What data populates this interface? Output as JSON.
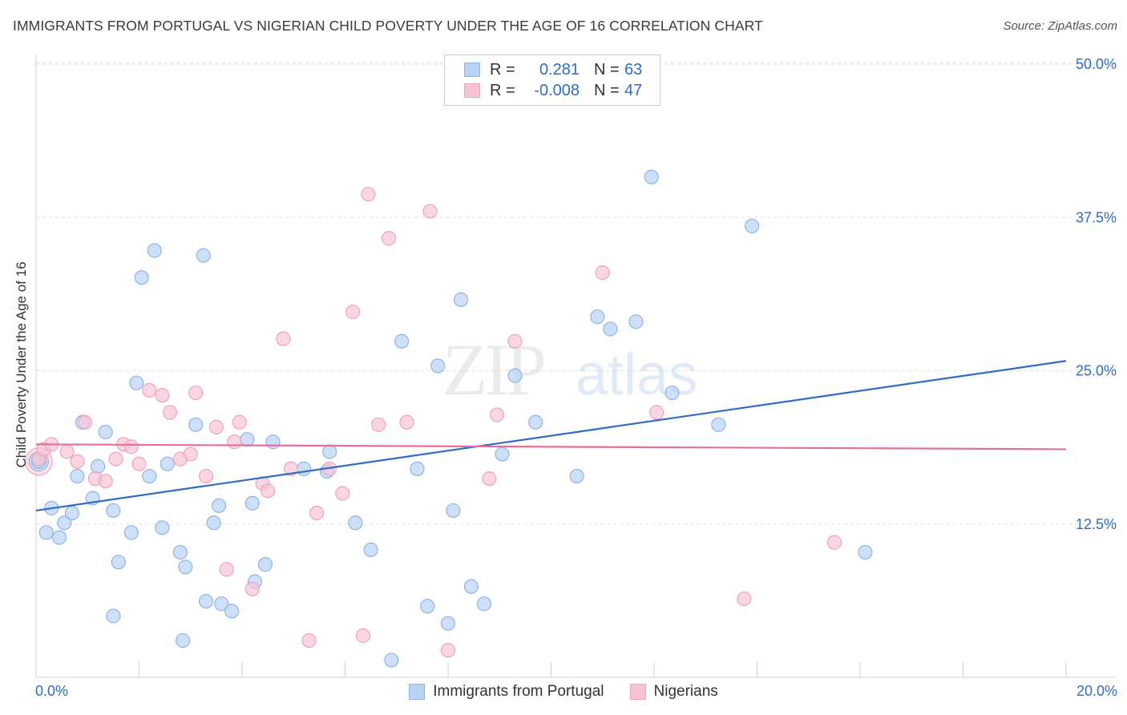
{
  "title": "IMMIGRANTS FROM PORTUGAL VS NIGERIAN CHILD POVERTY UNDER THE AGE OF 16 CORRELATION CHART",
  "source": "Source: ZipAtlas.com",
  "watermark": {
    "zip": "ZIP",
    "atlas": "atlas"
  },
  "legend_top": [
    {
      "r_label": "R =",
      "r_value": "0.281",
      "n_label": "N =",
      "n_value": "63"
    },
    {
      "r_label": "R =",
      "r_value": "-0.008",
      "n_label": "N =",
      "n_value": "47"
    }
  ],
  "colors": {
    "blue_fill": "#b8d3f3",
    "blue_stroke": "#8fb5e6",
    "blue_line": "#2f6dc4",
    "pink_fill": "#f7c4d4",
    "pink_stroke": "#f0a3bb",
    "pink_line": "#e3709a",
    "tick_text": "#2f6dc4",
    "grid": "#dddddd"
  },
  "chart_data": {
    "type": "scatter",
    "title": "IMMIGRANTS FROM PORTUGAL VS NIGERIAN CHILD POVERTY UNDER THE AGE OF 16 CORRELATION CHART",
    "xlabel": "",
    "ylabel": "Child Poverty Under the Age of 16",
    "xlim": [
      0,
      20
    ],
    "ylim": [
      0,
      50
    ],
    "x_tick_labels": [
      "0.0%",
      "20.0%"
    ],
    "y_ticks": [
      12.5,
      25.0,
      37.5,
      50.0
    ],
    "y_tick_labels": [
      "12.5%",
      "25.0%",
      "37.5%",
      "50.0%"
    ],
    "grid": true,
    "legend_position": "top-center",
    "series": [
      {
        "name": "Immigrants from Portugal",
        "color": "#b8d3f3",
        "trend": {
          "x": [
            0,
            20
          ],
          "y": [
            13.6,
            25.8
          ]
        },
        "points": [
          [
            0.05,
            17.6
          ],
          [
            0.2,
            11.8
          ],
          [
            0.3,
            13.8
          ],
          [
            0.45,
            11.4
          ],
          [
            0.55,
            12.6
          ],
          [
            0.7,
            13.4
          ],
          [
            0.8,
            16.4
          ],
          [
            0.9,
            20.8
          ],
          [
            1.1,
            14.6
          ],
          [
            1.2,
            17.2
          ],
          [
            1.35,
            20.0
          ],
          [
            1.5,
            13.6
          ],
          [
            1.6,
            9.4
          ],
          [
            1.85,
            11.8
          ],
          [
            1.95,
            24.0
          ],
          [
            2.05,
            32.6
          ],
          [
            2.2,
            16.4
          ],
          [
            2.3,
            34.8
          ],
          [
            2.45,
            12.2
          ],
          [
            2.55,
            17.4
          ],
          [
            2.8,
            10.2
          ],
          [
            2.9,
            9.0
          ],
          [
            3.1,
            20.6
          ],
          [
            3.25,
            34.4
          ],
          [
            3.3,
            6.2
          ],
          [
            3.45,
            12.6
          ],
          [
            3.55,
            14.0
          ],
          [
            3.6,
            6.0
          ],
          [
            3.8,
            5.4
          ],
          [
            4.1,
            19.4
          ],
          [
            4.2,
            14.2
          ],
          [
            4.25,
            7.8
          ],
          [
            4.45,
            9.2
          ],
          [
            4.6,
            19.2
          ],
          [
            5.2,
            17.0
          ],
          [
            5.65,
            16.8
          ],
          [
            5.7,
            18.4
          ],
          [
            6.2,
            12.6
          ],
          [
            6.5,
            10.4
          ],
          [
            6.9,
            1.4
          ],
          [
            7.1,
            27.4
          ],
          [
            7.4,
            17.0
          ],
          [
            7.6,
            5.8
          ],
          [
            7.8,
            25.4
          ],
          [
            8.0,
            4.4
          ],
          [
            8.1,
            13.6
          ],
          [
            8.25,
            30.8
          ],
          [
            8.45,
            7.4
          ],
          [
            8.7,
            6.0
          ],
          [
            9.05,
            18.2
          ],
          [
            9.3,
            24.6
          ],
          [
            9.7,
            20.8
          ],
          [
            10.5,
            16.4
          ],
          [
            10.9,
            29.4
          ],
          [
            11.15,
            28.4
          ],
          [
            11.65,
            29.0
          ],
          [
            11.95,
            40.8
          ],
          [
            12.35,
            23.2
          ],
          [
            13.25,
            20.6
          ],
          [
            13.9,
            36.8
          ],
          [
            16.1,
            10.2
          ],
          [
            2.85,
            3.0
          ],
          [
            1.5,
            5.0
          ]
        ]
      },
      {
        "name": "Nigerians",
        "color": "#f7c4d4",
        "trend": {
          "x": [
            0,
            20
          ],
          "y": [
            19.0,
            18.6
          ]
        },
        "points": [
          [
            0.05,
            17.8
          ],
          [
            0.15,
            18.6
          ],
          [
            0.3,
            19.0
          ],
          [
            0.6,
            18.4
          ],
          [
            0.8,
            17.6
          ],
          [
            0.95,
            20.8
          ],
          [
            1.15,
            16.2
          ],
          [
            1.35,
            16.0
          ],
          [
            1.55,
            17.8
          ],
          [
            1.7,
            19.0
          ],
          [
            1.85,
            18.8
          ],
          [
            2.0,
            17.4
          ],
          [
            2.2,
            23.4
          ],
          [
            2.45,
            23.0
          ],
          [
            2.6,
            21.6
          ],
          [
            2.8,
            17.8
          ],
          [
            3.0,
            18.2
          ],
          [
            3.1,
            23.2
          ],
          [
            3.3,
            16.4
          ],
          [
            3.5,
            20.4
          ],
          [
            3.7,
            8.8
          ],
          [
            3.85,
            19.2
          ],
          [
            3.95,
            20.8
          ],
          [
            4.2,
            7.2
          ],
          [
            4.4,
            15.8
          ],
          [
            4.5,
            15.2
          ],
          [
            4.8,
            27.6
          ],
          [
            4.95,
            17.0
          ],
          [
            5.3,
            3.0
          ],
          [
            5.45,
            13.4
          ],
          [
            5.7,
            17.0
          ],
          [
            5.95,
            15.0
          ],
          [
            6.15,
            29.8
          ],
          [
            6.35,
            3.4
          ],
          [
            6.45,
            39.4
          ],
          [
            6.65,
            20.6
          ],
          [
            6.85,
            35.8
          ],
          [
            7.2,
            20.8
          ],
          [
            7.65,
            38.0
          ],
          [
            8.0,
            2.2
          ],
          [
            8.8,
            16.2
          ],
          [
            8.95,
            21.4
          ],
          [
            9.3,
            27.4
          ],
          [
            11.0,
            33.0
          ],
          [
            12.05,
            21.6
          ],
          [
            13.75,
            6.4
          ],
          [
            15.5,
            11.0
          ]
        ]
      }
    ]
  },
  "legend_bottom": [
    "Immigrants from Portugal",
    "Nigerians"
  ]
}
